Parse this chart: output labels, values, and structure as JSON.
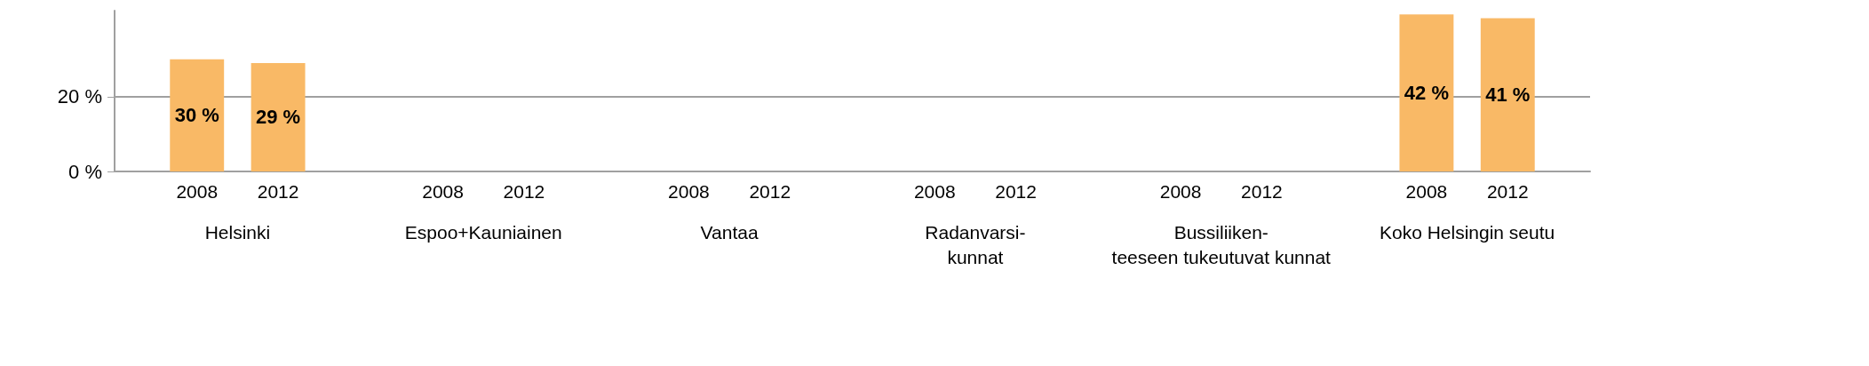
{
  "chart_data": {
    "type": "bar",
    "categories": [
      "Helsinki",
      "Espoo+Kauniainen",
      "Vantaa",
      "Radanvarsi-kunnat",
      "Bussiliiken-teeseen tukeutuvat kunnat",
      "Koko Helsingin seutu"
    ],
    "series": [
      {
        "name": "2008",
        "color": "#f9b966",
        "values": [
          30,
          null,
          null,
          null,
          null,
          42
        ],
        "value_labels": [
          "30 %",
          null,
          null,
          null,
          null,
          "42 %"
        ]
      },
      {
        "name": "2012",
        "color": "#f9b966",
        "values": [
          29,
          null,
          null,
          null,
          null,
          41
        ],
        "value_labels": [
          "29 %",
          null,
          null,
          null,
          null,
          "41 %"
        ]
      }
    ],
    "ylim": [
      0,
      43
    ],
    "yticks": [
      {
        "value": 0,
        "label": "0 %"
      },
      {
        "value": 20,
        "label": "20 %"
      }
    ],
    "grid": "y",
    "legend": false
  }
}
